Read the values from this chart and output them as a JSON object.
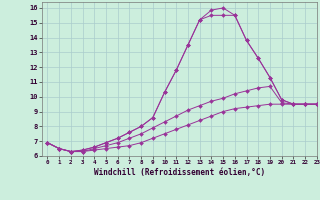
{
  "xlabel": "Windchill (Refroidissement éolien,°C)",
  "background_color": "#cceedd",
  "grid_color": "#aacccc",
  "line_color": "#993399",
  "xlim": [
    -0.5,
    23
  ],
  "ylim": [
    6,
    16.4
  ],
  "x_ticks": [
    0,
    1,
    2,
    3,
    4,
    5,
    6,
    7,
    8,
    9,
    10,
    11,
    12,
    13,
    14,
    15,
    16,
    17,
    18,
    19,
    20,
    21,
    22,
    23
  ],
  "y_ticks": [
    6,
    7,
    8,
    9,
    10,
    11,
    12,
    13,
    14,
    15,
    16
  ],
  "series": [
    [
      6.9,
      6.5,
      6.3,
      6.3,
      6.4,
      6.5,
      6.6,
      6.7,
      6.9,
      7.2,
      7.5,
      7.8,
      8.1,
      8.4,
      8.7,
      9.0,
      9.2,
      9.3,
      9.4,
      9.5,
      9.5,
      9.5,
      9.5,
      9.5
    ],
    [
      6.9,
      6.5,
      6.3,
      6.3,
      6.5,
      6.7,
      6.9,
      7.2,
      7.5,
      7.9,
      8.3,
      8.7,
      9.1,
      9.4,
      9.7,
      9.9,
      10.2,
      10.4,
      10.6,
      10.7,
      9.6,
      9.5,
      9.5,
      9.5
    ],
    [
      6.9,
      6.5,
      6.3,
      6.4,
      6.6,
      6.9,
      7.2,
      7.6,
      8.0,
      8.6,
      10.3,
      11.8,
      13.5,
      15.2,
      15.85,
      16.0,
      15.5,
      13.8,
      12.6,
      11.3,
      9.8,
      9.5,
      9.5,
      9.5
    ],
    [
      6.9,
      6.5,
      6.3,
      6.4,
      6.6,
      6.9,
      7.2,
      7.6,
      8.0,
      8.6,
      10.3,
      11.8,
      13.5,
      15.2,
      15.5,
      15.5,
      15.5,
      13.8,
      12.6,
      11.3,
      9.8,
      9.5,
      9.5,
      9.5
    ]
  ],
  "marker": "D",
  "markersize": 2.0,
  "linewidth": 0.7
}
